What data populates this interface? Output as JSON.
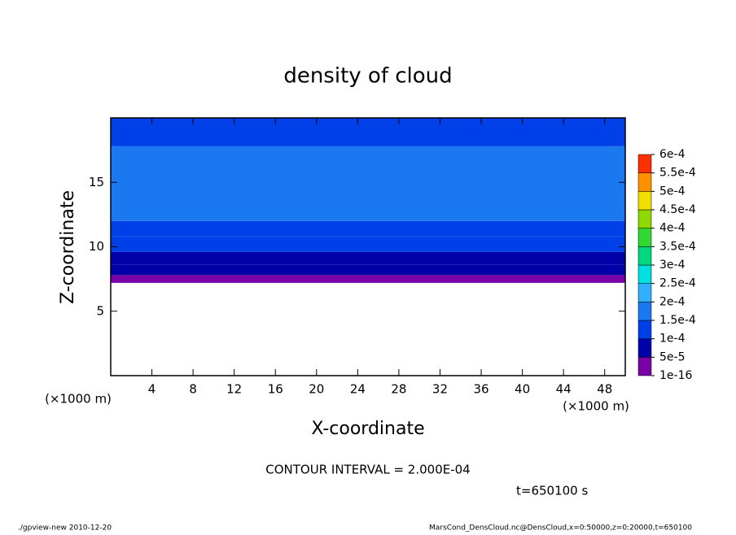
{
  "chart_data": {
    "type": "contour",
    "title": "density of cloud",
    "xlabel": "X-coordinate",
    "ylabel": "Z-coordinate",
    "x_unit": "(×1000 m)",
    "xlim": [
      0,
      50
    ],
    "xticks": [
      4,
      8,
      12,
      16,
      20,
      24,
      28,
      32,
      36,
      40,
      44,
      48
    ],
    "ylim": [
      0,
      20
    ],
    "yticks": [
      5,
      10,
      15
    ],
    "z_edges": [
      7.2,
      7.8,
      8.6,
      9.6,
      10.8,
      12,
      17.8,
      20
    ],
    "values": [
      3e-05,
      6e-05,
      8e-05,
      0.00012,
      0.00014,
      0.00016,
      0.00013
    ],
    "levels": [
      {
        "value": 1e-16,
        "label": "1e-16"
      },
      {
        "value": 5e-05,
        "label": "5e-5"
      },
      {
        "value": 0.0001,
        "label": "1e-4"
      },
      {
        "value": 0.00015,
        "label": "1.5e-4"
      },
      {
        "value": 0.0002,
        "label": "2e-4"
      },
      {
        "value": 0.00025,
        "label": "2.5e-4"
      },
      {
        "value": 0.0003,
        "label": "3e-4"
      },
      {
        "value": 0.00035,
        "label": "3.5e-4"
      },
      {
        "value": 0.0004,
        "label": "4e-4"
      },
      {
        "value": 0.00045,
        "label": "4.5e-4"
      },
      {
        "value": 0.0005,
        "label": "5e-4"
      },
      {
        "value": 0.00055,
        "label": "5.5e-4"
      },
      {
        "value": 0.0006,
        "label": "6e-4"
      }
    ],
    "colors": [
      "#7a00a8",
      "#0000a8",
      "#0040e8",
      "#1a78f0",
      "#30b0ff",
      "#00e0e0",
      "#00d880",
      "#30d830",
      "#90d800",
      "#f0e000",
      "#ff9000",
      "#ff3000"
    ],
    "annotations": {
      "contour_interval": "CONTOUR INTERVAL = 2.000E-04",
      "time": "t=650100 s",
      "footer_left": "./gpview-new  2010-12-20",
      "footer_right": "MarsCond_DensCloud.nc@DensCloud,x=0:50000,z=0:20000,t=650100"
    }
  }
}
